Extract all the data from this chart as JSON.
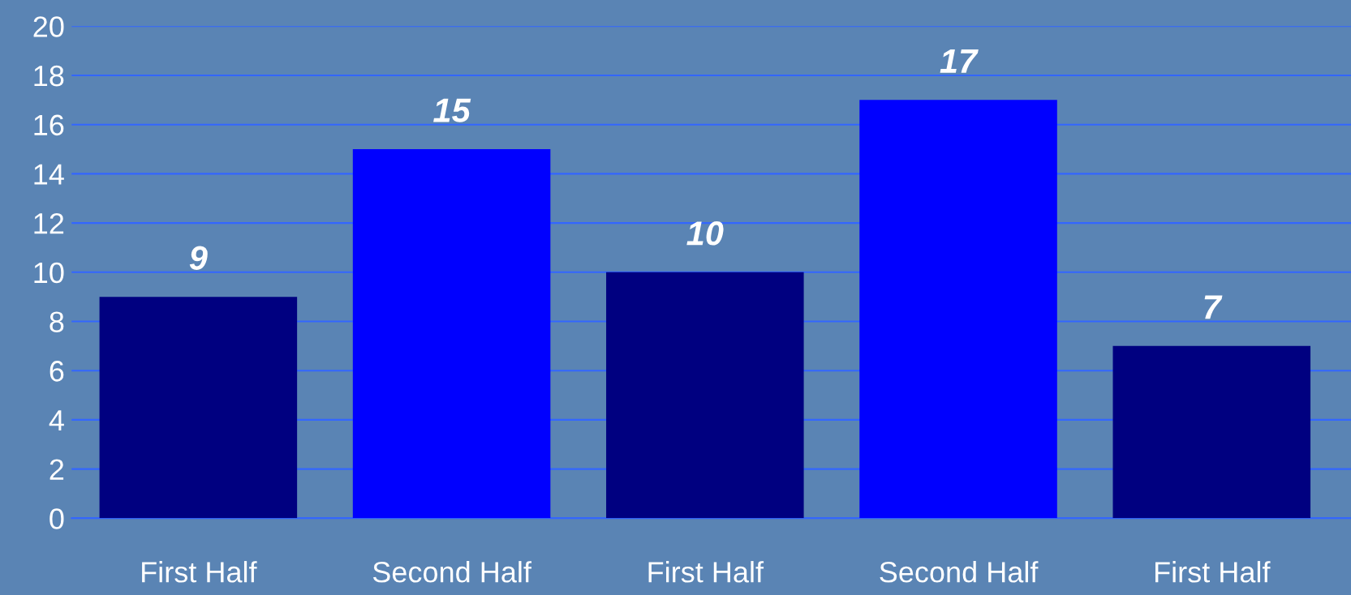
{
  "chart_data": {
    "type": "bar",
    "categories": [
      "First Half",
      "Second Half",
      "First Half",
      "Second Half",
      "First Half"
    ],
    "values": [
      9,
      15,
      10,
      17,
      7
    ],
    "colors": [
      "#000080",
      "#0000ff",
      "#000080",
      "#0000ff",
      "#000080"
    ],
    "ylim": [
      0,
      20
    ],
    "yticks": [
      0,
      2,
      4,
      6,
      8,
      10,
      12,
      14,
      16,
      18,
      20
    ],
    "grid": "y",
    "data_labels": true
  }
}
